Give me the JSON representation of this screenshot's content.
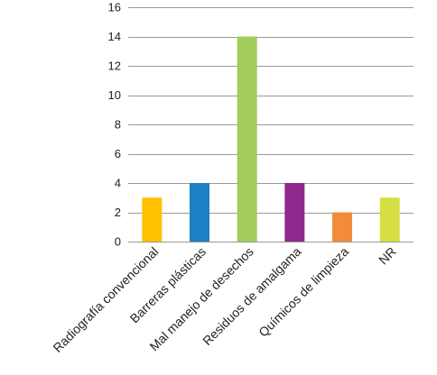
{
  "chart_data": {
    "type": "bar",
    "title": "",
    "xlabel": "",
    "ylabel": "",
    "ylim": [
      0,
      16
    ],
    "yticks": [
      0,
      2,
      4,
      6,
      8,
      10,
      12,
      14,
      16
    ],
    "grid": true,
    "legend": "none",
    "categories": [
      "Radiografía convencional",
      "Barreras plásticas",
      "Mal manejo de desechos",
      "Residuos de amalgama",
      "Químicos de limpieza",
      "NR"
    ],
    "values": [
      3,
      4,
      14,
      4,
      2,
      3
    ],
    "colors": [
      "#FFC000",
      "#1B80C4",
      "#A2CD5A",
      "#8E2A8E",
      "#F28C3A",
      "#D5DE42"
    ]
  }
}
